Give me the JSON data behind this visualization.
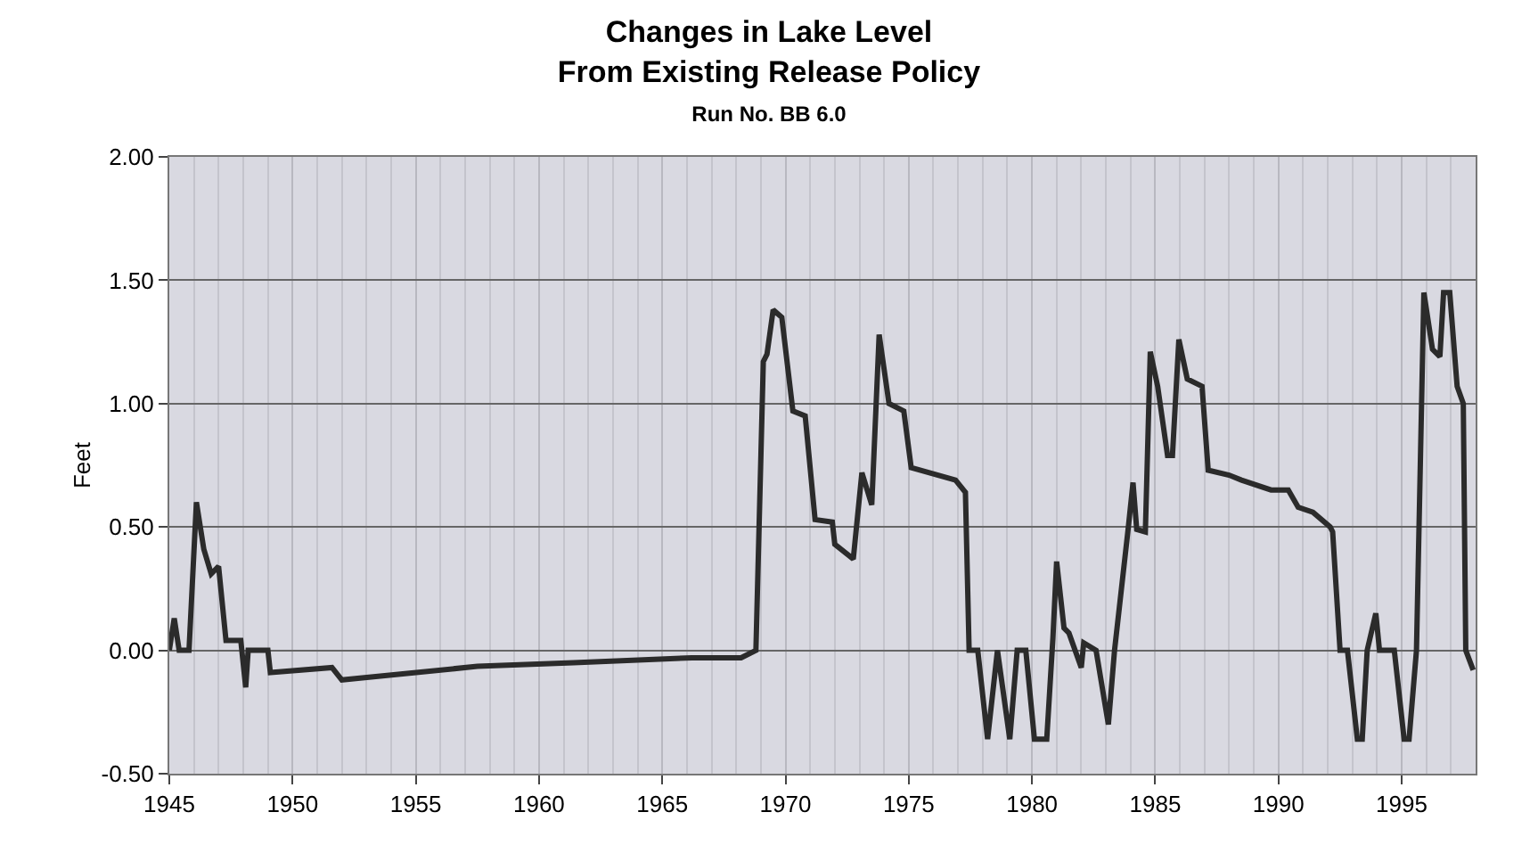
{
  "chart_data": {
    "type": "line",
    "title": "Changes in Lake Level\nFrom Existing Release Policy",
    "subtitle": "Run No. BB 6.0",
    "ylabel": "Feet",
    "xlim": [
      1945,
      1998
    ],
    "xticks": [
      1945,
      1950,
      1955,
      1960,
      1965,
      1970,
      1975,
      1980,
      1985,
      1990,
      1995
    ],
    "ylim": [
      -0.5,
      2.0
    ],
    "yticks": [
      {
        "value": -0.5,
        "label": "-0.50"
      },
      {
        "value": 0,
        "label": "0.00"
      },
      {
        "value": 0.5,
        "label": "0.50"
      },
      {
        "value": 1.0,
        "label": "1.00"
      },
      {
        "value": 1.5,
        "label": "1.50"
      },
      {
        "value": 2.0,
        "label": "2.00"
      }
    ],
    "grid": true,
    "marker": "none",
    "line_style": "solid",
    "series": [
      {
        "color": "#2b2b2b",
        "x": [
          1945.0,
          1945.2,
          1945.4,
          1945.8,
          1946.1,
          1946.4,
          1946.7,
          1947.0,
          1947.3,
          1947.9,
          1948.1,
          1948.2,
          1949.0,
          1949.1,
          1951.6,
          1952.0,
          1957.5,
          1961.4,
          1966.2,
          1968.2,
          1968.8,
          1969.1,
          1969.25,
          1969.5,
          1969.85,
          1970.3,
          1970.8,
          1971.2,
          1971.9,
          1972.0,
          1972.75,
          1973.1,
          1973.5,
          1973.8,
          1974.2,
          1974.8,
          1975.1,
          1976.9,
          1977.3,
          1977.45,
          1977.8,
          1978.2,
          1978.6,
          1979.1,
          1979.4,
          1979.75,
          1980.1,
          1980.6,
          1980.85,
          1981.0,
          1981.3,
          1981.5,
          1982.0,
          1982.1,
          1982.6,
          1983.1,
          1983.35,
          1983.9,
          1984.1,
          1984.25,
          1984.6,
          1984.8,
          1985.1,
          1985.5,
          1985.7,
          1985.96,
          1986.3,
          1986.9,
          1987.15,
          1988.0,
          1988.5,
          1989.7,
          1990.4,
          1990.8,
          1991.4,
          1992.1,
          1992.2,
          1992.5,
          1992.8,
          1993.2,
          1993.4,
          1993.6,
          1993.95,
          1994.1,
          1994.7,
          1995.1,
          1995.3,
          1995.6,
          1995.9,
          1996.25,
          1996.55,
          1996.7,
          1996.95,
          1997.25,
          1997.5,
          1997.6,
          1997.9
        ],
        "values": [
          0.0,
          0.13,
          0.0,
          0.0,
          0.6,
          0.41,
          0.31,
          0.34,
          0.04,
          0.04,
          -0.15,
          0.0,
          0.0,
          -0.09,
          -0.07,
          -0.12,
          -0.065,
          -0.05,
          -0.03,
          -0.03,
          0.0,
          1.17,
          1.2,
          1.38,
          1.35,
          0.97,
          0.95,
          0.53,
          0.52,
          0.43,
          0.37,
          0.72,
          0.59,
          1.28,
          1.0,
          0.97,
          0.74,
          0.69,
          0.64,
          0.0,
          0.0,
          -0.36,
          0.0,
          -0.36,
          0.0,
          0.0,
          -0.36,
          -0.36,
          0.05,
          0.36,
          0.09,
          0.07,
          -0.07,
          0.03,
          0.0,
          -0.3,
          0.0,
          0.49,
          0.68,
          0.49,
          0.48,
          1.21,
          1.07,
          0.79,
          0.79,
          1.26,
          1.1,
          1.07,
          0.73,
          0.71,
          0.69,
          0.65,
          0.65,
          0.58,
          0.56,
          0.5,
          0.48,
          0.0,
          0.0,
          -0.36,
          -0.36,
          0.0,
          0.15,
          0.0,
          0.0,
          -0.36,
          -0.36,
          0.0,
          1.45,
          1.22,
          1.19,
          1.45,
          1.45,
          1.07,
          1.0,
          0.0,
          -0.08
        ]
      }
    ]
  }
}
